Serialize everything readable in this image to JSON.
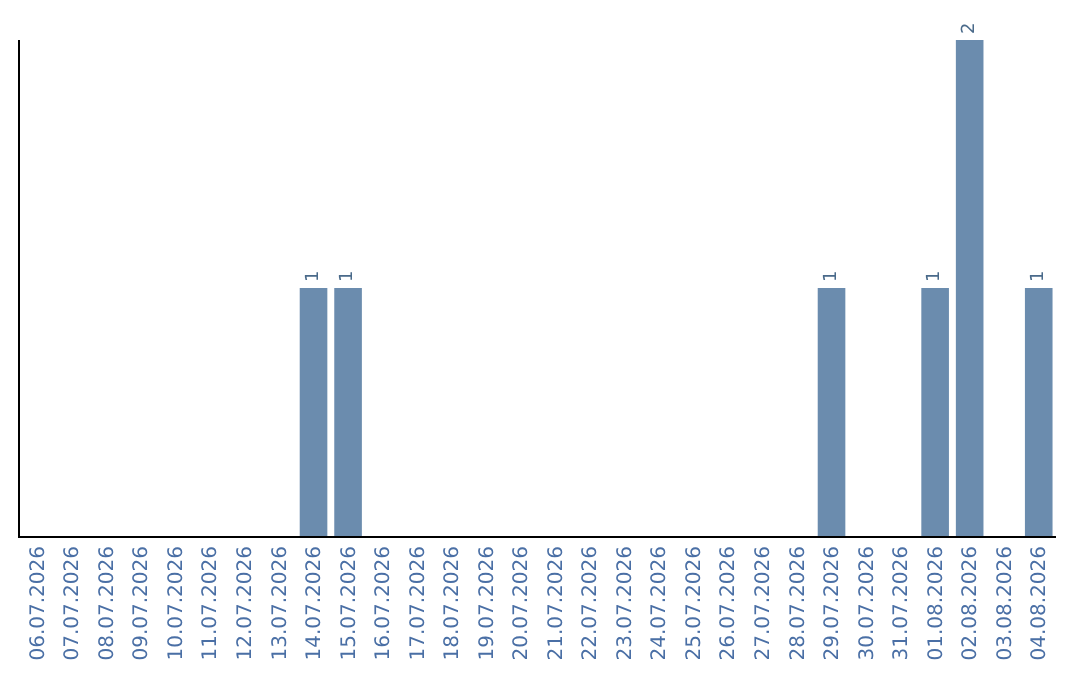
{
  "chart_data": {
    "type": "bar",
    "categories": [
      "06.07.2026",
      "07.07.2026",
      "08.07.2026",
      "09.07.2026",
      "10.07.2026",
      "11.07.2026",
      "12.07.2026",
      "13.07.2026",
      "14.07.2026",
      "15.07.2026",
      "16.07.2026",
      "17.07.2026",
      "18.07.2026",
      "19.07.2026",
      "20.07.2026",
      "21.07.2026",
      "22.07.2026",
      "23.07.2026",
      "24.07.2026",
      "25.07.2026",
      "26.07.2026",
      "27.07.2026",
      "28.07.2026",
      "29.07.2026",
      "30.07.2026",
      "31.07.2026",
      "01.08.2026",
      "02.08.2026",
      "03.08.2026",
      "04.08.2026"
    ],
    "values": [
      0,
      0,
      0,
      0,
      0,
      0,
      0,
      0,
      1,
      1,
      0,
      0,
      0,
      0,
      0,
      0,
      0,
      0,
      0,
      0,
      0,
      0,
      0,
      1,
      0,
      0,
      1,
      2,
      0,
      1
    ],
    "value_labels": [
      null,
      null,
      null,
      null,
      null,
      null,
      null,
      null,
      "1",
      "1",
      null,
      null,
      null,
      null,
      null,
      null,
      null,
      null,
      null,
      null,
      null,
      null,
      null,
      "1",
      null,
      null,
      "1",
      "2",
      null,
      "1"
    ],
    "color": "#6b8cae",
    "tick_labels": "x"
  }
}
